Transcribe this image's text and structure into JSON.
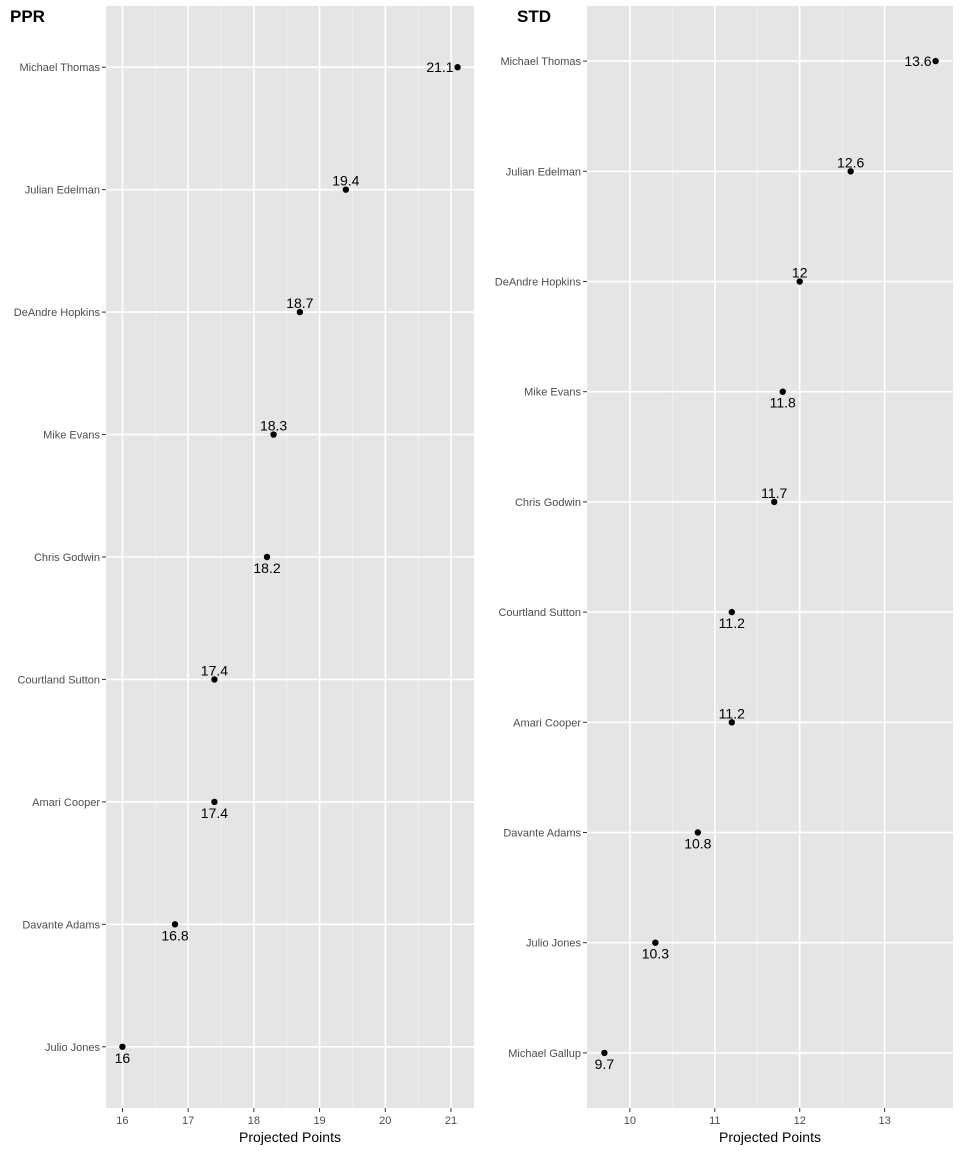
{
  "chart_data": [
    {
      "type": "scatter",
      "title": "PPR",
      "xlabel": "Projected Points",
      "ylabel": "",
      "xlim": [
        15.75,
        21.35
      ],
      "xticks": [
        16,
        17,
        18,
        19,
        20,
        21
      ],
      "grid": true,
      "categories": [
        "Michael Thomas",
        "Julian Edelman",
        "DeAndre Hopkins",
        "Mike Evans",
        "Chris Godwin",
        "Courtland Sutton",
        "Amari Cooper",
        "Davante Adams",
        "Julio Jones"
      ],
      "values": [
        21.1,
        19.4,
        18.7,
        18.3,
        18.2,
        17.4,
        17.4,
        16.8,
        16
      ],
      "labels": [
        "21.1",
        "19.4",
        "18.7",
        "18.3",
        "18.2",
        "17.4",
        "17.4",
        "16.8",
        "16"
      ],
      "label_positions": [
        "left",
        "above",
        "above",
        "above",
        "below",
        "above",
        "below",
        "below",
        "below"
      ]
    },
    {
      "type": "scatter",
      "title": "STD",
      "xlabel": "Projected Points",
      "ylabel": "",
      "xlim": [
        9.495,
        13.805
      ],
      "xticks": [
        10,
        11,
        12,
        13
      ],
      "grid": true,
      "categories": [
        "Michael Thomas",
        "Julian Edelman",
        "DeAndre Hopkins",
        "Mike Evans",
        "Chris Godwin",
        "Courtland Sutton",
        "Amari Cooper",
        "Davante Adams",
        "Julio Jones",
        "Michael Gallup"
      ],
      "values": [
        13.6,
        12.6,
        12,
        11.8,
        11.7,
        11.2,
        11.2,
        10.8,
        10.3,
        9.7
      ],
      "labels": [
        "13.6",
        "12.6",
        "12",
        "11.8",
        "11.7",
        "11.2",
        "11.2",
        "10.8",
        "10.3",
        "9.7"
      ],
      "label_positions": [
        "left",
        "above",
        "above",
        "below",
        "above",
        "below",
        "above",
        "below",
        "below",
        "below"
      ]
    }
  ]
}
